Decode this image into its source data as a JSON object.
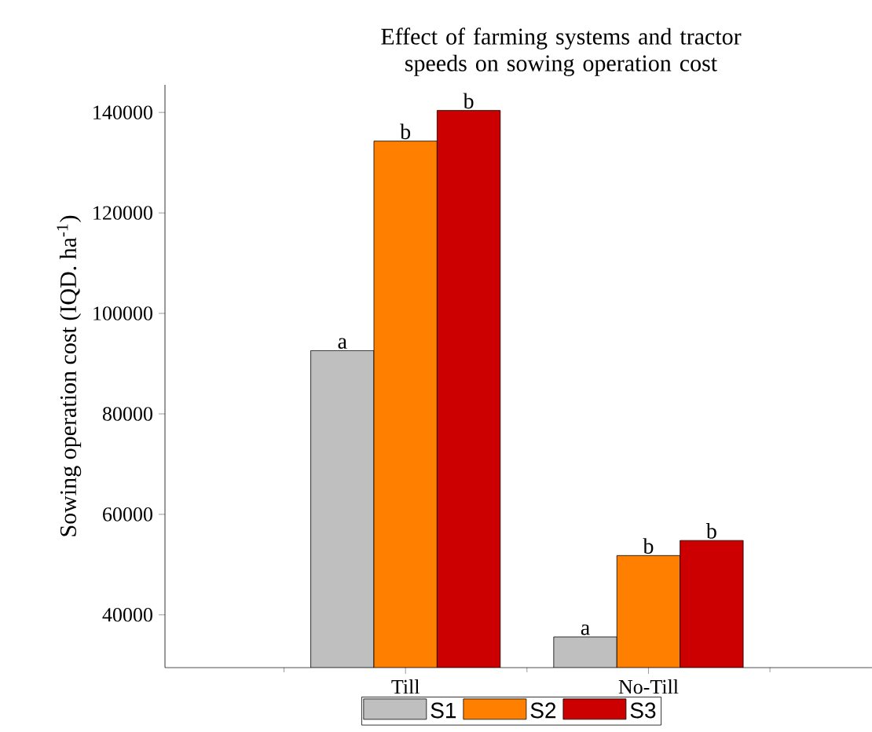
{
  "chart_data": {
    "type": "bar",
    "title": "Effect of farming systems and tractor speeds on sowing operation cost",
    "ylabel": "Sowing operation cost (IQD. ha$^{-1}$)",
    "categories": [
      "Till",
      "No-Till"
    ],
    "series": [
      {
        "name": "S1",
        "color": "#bfbfbf",
        "values": [
          92600,
          35600
        ]
      },
      {
        "name": "S2",
        "color": "#ff8000",
        "values": [
          134300,
          51800
        ]
      },
      {
        "name": "S3",
        "color": "#cc0000",
        "values": [
          140400,
          54800
        ]
      }
    ],
    "annotations": [
      "a",
      "b",
      "b",
      "a",
      "b",
      "b"
    ],
    "ylim": [
      29500,
      145500
    ],
    "yticks": [
      40000,
      60000,
      80000,
      100000,
      120000,
      140000
    ],
    "grid": false,
    "legend": "bottom"
  }
}
